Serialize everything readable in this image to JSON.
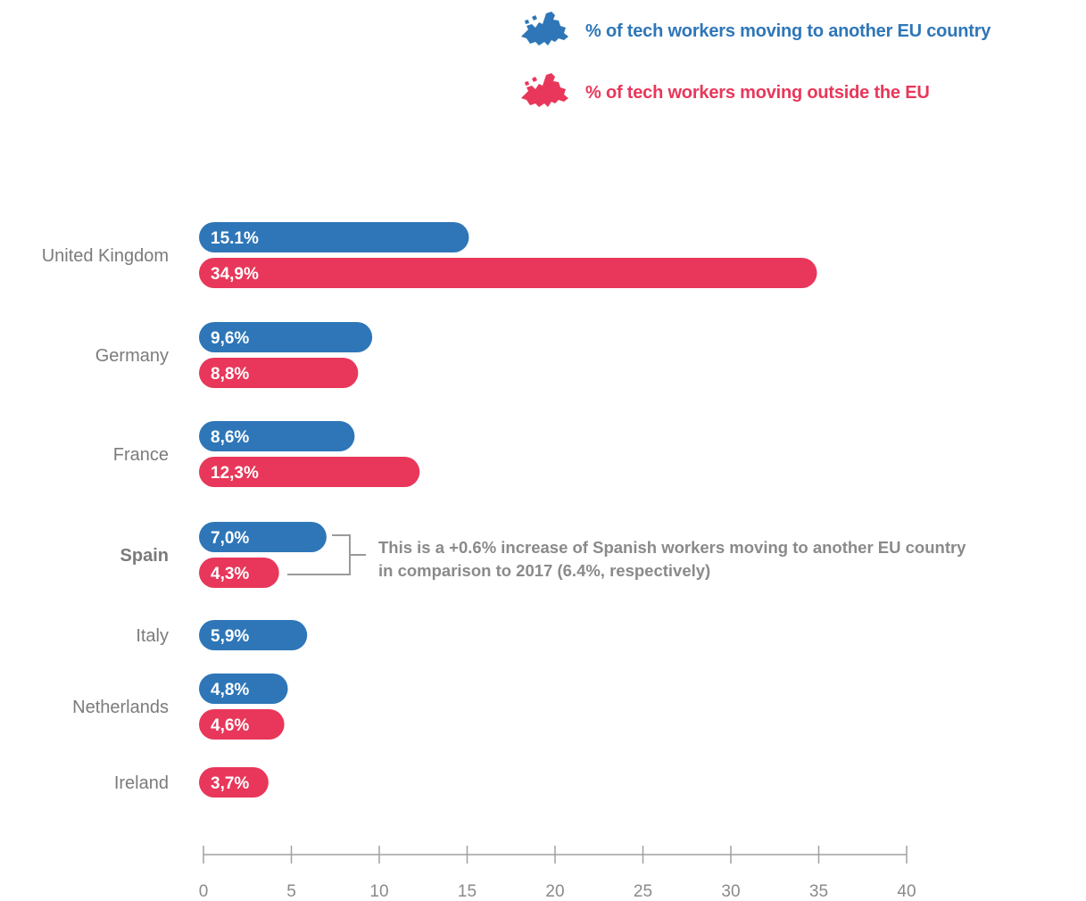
{
  "legend": {
    "items": [
      {
        "label": "% of tech workers moving to another EU country",
        "color": "#2e76b8",
        "icon": "europe-map-icon"
      },
      {
        "label": "% of tech workers moving outside the EU",
        "color": "#e8375a",
        "icon": "europe-map-icon"
      }
    ]
  },
  "annotation": {
    "text": "This is a +0.6% increase of Spanish workers moving to another EU country in comparison to 2017  (6.4%, respectively)"
  },
  "chart_data": {
    "type": "bar",
    "orientation": "horizontal",
    "categories": [
      "United Kingdom",
      "Germany",
      "France",
      "Spain",
      "Italy",
      "Netherlands",
      "Ireland"
    ],
    "highlight_category": "Spain",
    "series": [
      {
        "name": "% of tech workers moving to another EU country",
        "color": "#2e76b8",
        "values": [
          15.1,
          9.6,
          8.6,
          7.0,
          5.9,
          4.8,
          null
        ],
        "labels": [
          "15.1%",
          "9,6%",
          "8,6%",
          "7,0%",
          "5,9%",
          "4,8%",
          null
        ]
      },
      {
        "name": "% of tech workers moving outside the EU",
        "color": "#e8375a",
        "values": [
          34.9,
          8.8,
          12.3,
          4.3,
          null,
          4.6,
          3.7
        ],
        "labels": [
          "34,9%",
          "8,8%",
          "12,3%",
          "4,3%",
          null,
          "4,6%",
          "3,7%"
        ]
      }
    ],
    "xticks": [
      "0",
      "5",
      "10",
      "15",
      "20",
      "25",
      "30",
      "35",
      "40"
    ],
    "xlim": [
      0,
      40
    ],
    "grid": false,
    "legend_position": "top-right"
  }
}
